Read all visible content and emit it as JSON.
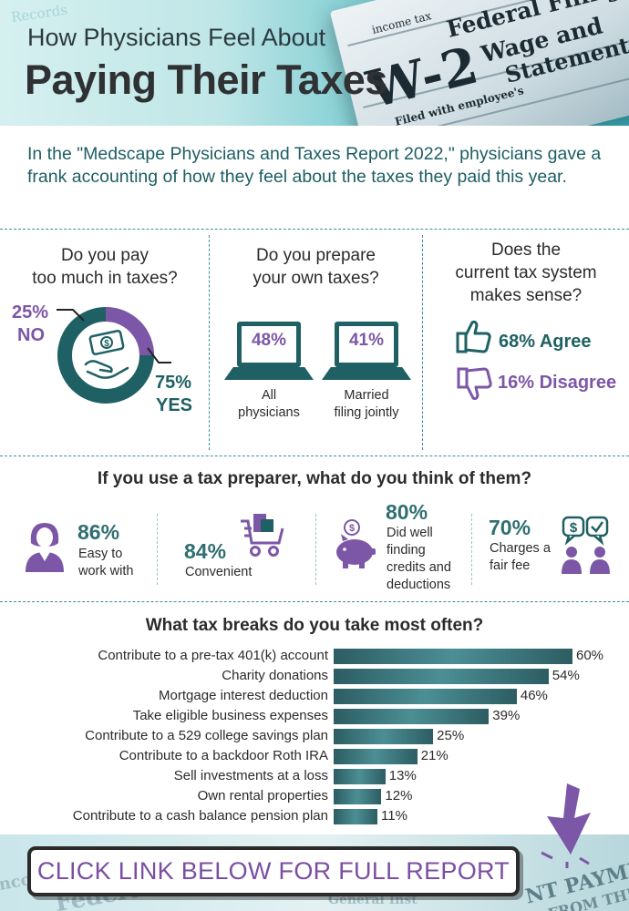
{
  "header": {
    "title_line1": "How Physicians Feel About",
    "title_line2": "Paying Their Taxes",
    "doc_text": [
      "Federal Filing",
      "W-2",
      "Wage and",
      "Statement",
      "Records",
      "income tax",
      "Filed with employee's"
    ]
  },
  "intro": "In the \"Medscape Physicians and Taxes Report 2022,\" physicians gave a frank accounting of how they feel about the taxes they paid this year.",
  "q1": {
    "title": [
      "Do you pay",
      "too much in taxes?"
    ],
    "no_pct": "25%",
    "no_label": "NO",
    "yes_pct": "75%",
    "yes_label": "YES",
    "no_value": 25,
    "yes_value": 75
  },
  "q2": {
    "title": [
      "Do you prepare",
      "your own taxes?"
    ],
    "items": [
      {
        "pct": "48%",
        "caption": [
          "All",
          "physicians"
        ]
      },
      {
        "pct": "41%",
        "caption": [
          "Married",
          "filing jointly"
        ]
      }
    ]
  },
  "q3": {
    "title": [
      "Does the",
      "current tax system",
      "makes sense?"
    ],
    "agree": "68% Agree",
    "disagree": "16% Disagree"
  },
  "preparer": {
    "title": "If you use a tax preparer, what do you think of them?",
    "stats": [
      {
        "pct": "86%",
        "text": [
          "Easy to",
          "work with"
        ]
      },
      {
        "pct": "84%",
        "text": [
          "Convenient"
        ]
      },
      {
        "pct": "80%",
        "text": [
          "Did well",
          "finding",
          "credits and",
          "deductions"
        ]
      },
      {
        "pct": "70%",
        "text": [
          "Charges a",
          "fair fee"
        ]
      }
    ]
  },
  "chart_data": {
    "type": "bar",
    "title": "What tax breaks do you take most often?",
    "orientation": "horizontal",
    "categories": [
      "Contribute to a pre-tax 401(k) account",
      "Charity donations",
      "Mortgage interest deduction",
      "Take eligible business expenses",
      "Contribute to a 529 college savings plan",
      "Contribute to a backdoor Roth IRA",
      "Sell investments at a loss",
      "Own rental properties",
      "Contribute to a cash balance pension plan"
    ],
    "values": [
      60,
      54,
      46,
      39,
      25,
      21,
      13,
      12,
      11
    ],
    "value_labels": [
      "60%",
      "54%",
      "46%",
      "39%",
      "25%",
      "21%",
      "13%",
      "12%",
      "11%"
    ],
    "unit": "%"
  },
  "footer": {
    "cta": "CLICK LINK BELOW FOR FULL REPORT",
    "bg_text": [
      "Income",
      "Federal",
      "General Inst",
      "NT PAYME",
      "FROM THE"
    ]
  },
  "colors": {
    "teal_dark": "#1e6063",
    "teal": "#2f6f72",
    "purple": "#7d57a7",
    "intro_text": "#1d5e62"
  },
  "icons": [
    "money-hand-icon",
    "laptop-icon",
    "thumbs-up-icon",
    "thumbs-down-icon",
    "businesswoman-icon",
    "shopping-cart-icon",
    "piggy-bank-icon",
    "fee-chat-icon",
    "cursor-arrow-icon"
  ]
}
